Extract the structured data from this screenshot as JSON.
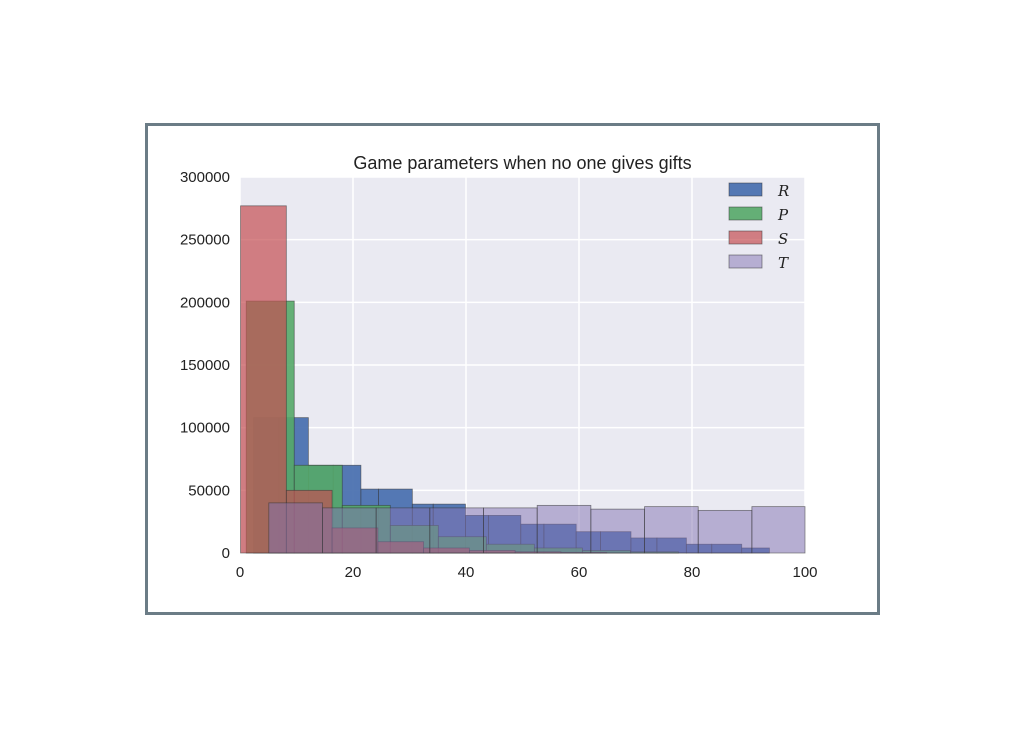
{
  "chart_data": {
    "type": "bar",
    "title": "Game parameters when no one gives gifts",
    "xlabel": "",
    "ylabel": "",
    "xlim": [
      0,
      100
    ],
    "ylim": [
      0,
      300000
    ],
    "x_ticks": [
      "0",
      "20",
      "40",
      "60",
      "80",
      "100"
    ],
    "y_ticks": [
      "0",
      "50000",
      "100000",
      "150000",
      "200000",
      "250000",
      "300000"
    ],
    "x_tick_values": [
      0,
      20,
      40,
      60,
      80,
      100
    ],
    "y_tick_values": [
      0,
      50000,
      100000,
      150000,
      200000,
      250000,
      300000
    ],
    "grid": true,
    "legend_position": "top-right",
    "background": "#eaeaf2",
    "series": [
      {
        "name": "R",
        "color": "#4c72b0",
        "opacity": 0.95,
        "bin_edges": [
          2.4,
          6.9,
          12.1,
          16.5,
          21.4,
          24.5,
          30.5,
          34.2,
          39.9,
          44.0,
          49.7,
          53.8,
          59.5,
          63.8,
          69.2,
          73.8,
          79.0,
          83.5,
          88.8,
          93.7
        ],
        "values": [
          108000,
          108000,
          70000,
          70000,
          51000,
          51000,
          39000,
          39000,
          30000,
          30000,
          23000,
          23000,
          17000,
          17000,
          12000,
          12000,
          7000,
          7000,
          4000
        ]
      },
      {
        "name": "P",
        "color": "#55a868",
        "opacity": 0.9,
        "bin_edges": [
          1.1,
          9.6,
          18.1,
          26.6,
          35.1,
          43.6,
          52.1,
          60.6,
          69.1,
          77.6
        ],
        "values": [
          201000,
          70000,
          38000,
          22000,
          13000,
          7000,
          4000,
          2000,
          1000
        ]
      },
      {
        "name": "S",
        "color": "#c44e52",
        "opacity": 0.7,
        "bin_edges": [
          0.1,
          8.2,
          16.3,
          24.4,
          32.5,
          40.6,
          48.7,
          56.8,
          64.9
        ],
        "values": [
          277000,
          50000,
          20000,
          9000,
          4000,
          2000,
          1000,
          500
        ]
      },
      {
        "name": "T",
        "color": "#8172b2",
        "opacity": 0.5,
        "bin_edges": [
          5.1,
          14.6,
          24.1,
          33.6,
          43.1,
          52.6,
          62.1,
          71.6,
          81.1,
          90.6,
          100.0
        ],
        "values": [
          40000,
          36000,
          36000,
          36000,
          36000,
          38000,
          35000,
          37000,
          34000,
          37000
        ]
      }
    ]
  }
}
